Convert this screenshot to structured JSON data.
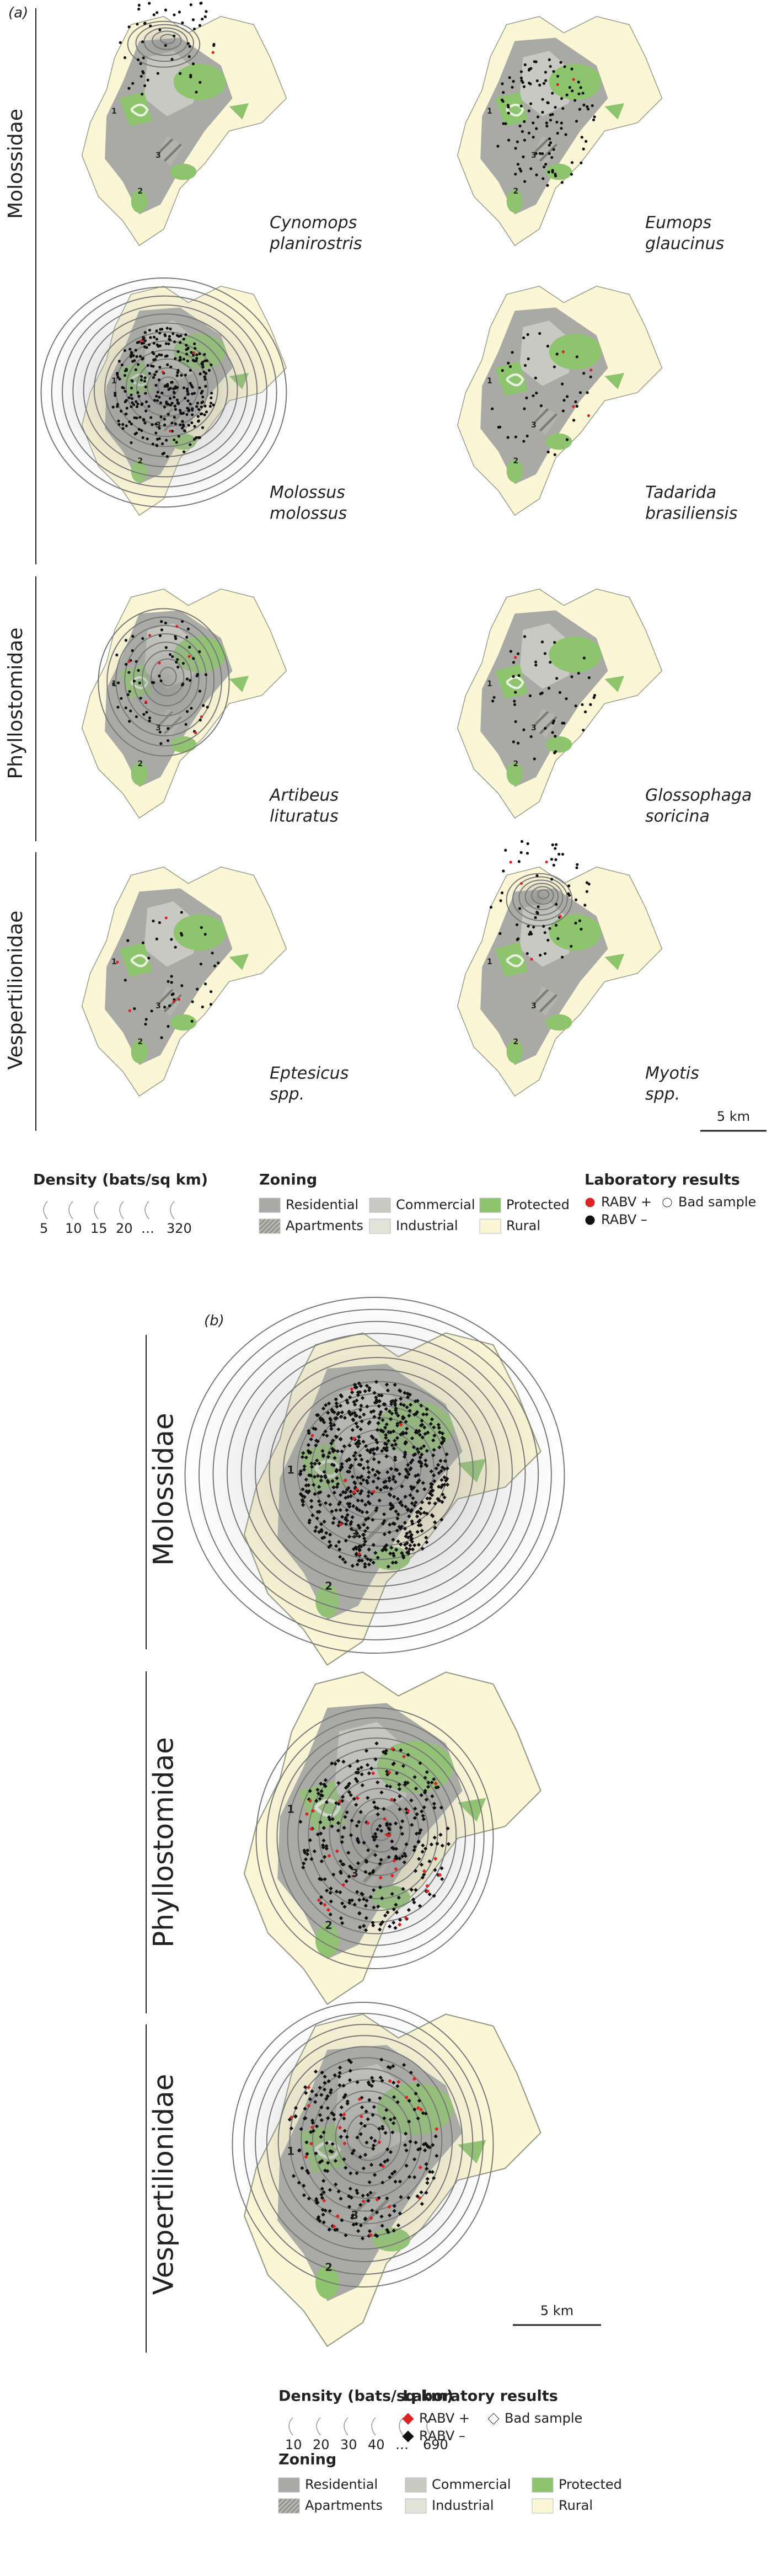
{
  "panel_a": {
    "label": "(a)",
    "families": [
      {
        "name": "Molossidae",
        "species": [
          {
            "line1": "Cynomops",
            "line2": "planirostris"
          },
          {
            "line1": "Eumops",
            "line2": "glaucinus"
          },
          {
            "line1": "Molossus",
            "line2": "molossus"
          },
          {
            "line1": "Tadarida",
            "line2": "brasiliensis"
          }
        ]
      },
      {
        "name": "Phyllostomidae",
        "species": [
          {
            "line1": "Artibeus",
            "line2": "lituratus"
          },
          {
            "line1": "Glossophaga",
            "line2": "soricina"
          }
        ]
      },
      {
        "name": "Vespertilionidae",
        "species": [
          {
            "line1": "Eptesicus",
            "line2": "spp."
          },
          {
            "line1": "Myotis",
            "line2": "spp."
          }
        ]
      }
    ],
    "scale_bar": "5 km",
    "legend": {
      "density_title": "Density (bats/sq km)",
      "density_labels": [
        "5",
        "10",
        "15",
        "20",
        "…",
        "320"
      ],
      "zoning_title": "Zoning",
      "zoning": [
        "Residential",
        "Apartments",
        "Commercial",
        "Industrial",
        "Protected",
        "Rural"
      ],
      "lab_title": "Laboratory results",
      "lab": [
        "RABV +",
        "RABV –",
        "Bad sample"
      ]
    }
  },
  "panel_b": {
    "label": "(b)",
    "families": [
      "Molossidae",
      "Phyllostomidae",
      "Vespertilionidae"
    ],
    "scale_bar": "5 km",
    "legend": {
      "density_title": "Density (bats/sq km)",
      "density_labels": [
        "10",
        "20",
        "30",
        "40",
        "…",
        "690"
      ],
      "zoning_title": "Zoning",
      "zoning": [
        "Residential",
        "Apartments",
        "Commercial",
        "Industrial",
        "Protected",
        "Rural"
      ],
      "lab_title": "Laboratory results",
      "lab": [
        "RABV +",
        "RABV –",
        "Bad sample"
      ]
    }
  },
  "map_labels": [
    "1",
    "2",
    "3"
  ]
}
